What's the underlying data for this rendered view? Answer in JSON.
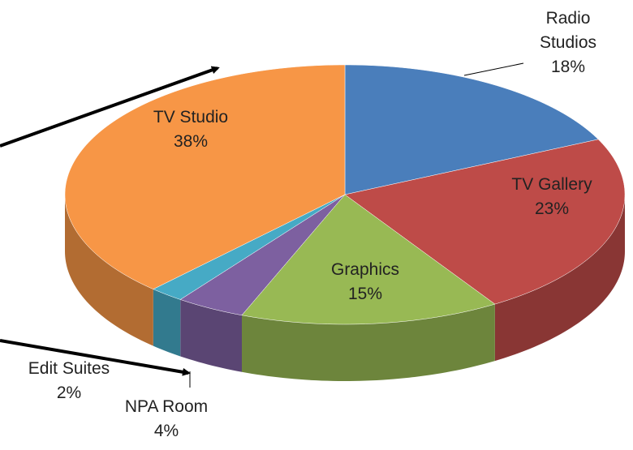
{
  "chart_data": {
    "type": "pie3d",
    "categories": [
      "Radio Studios",
      "TV Gallery",
      "Graphics",
      "NPA Room",
      "Edit Suites",
      "TV Studio"
    ],
    "values": [
      18,
      23,
      15,
      4,
      2,
      38
    ],
    "value_labels": [
      "18%",
      "23%",
      "15%",
      "4%",
      "2%",
      "38%"
    ],
    "colors": [
      "#4a7ebb",
      "#be4b48",
      "#98b954",
      "#7d60a0",
      "#46aac5",
      "#f79646"
    ]
  }
}
